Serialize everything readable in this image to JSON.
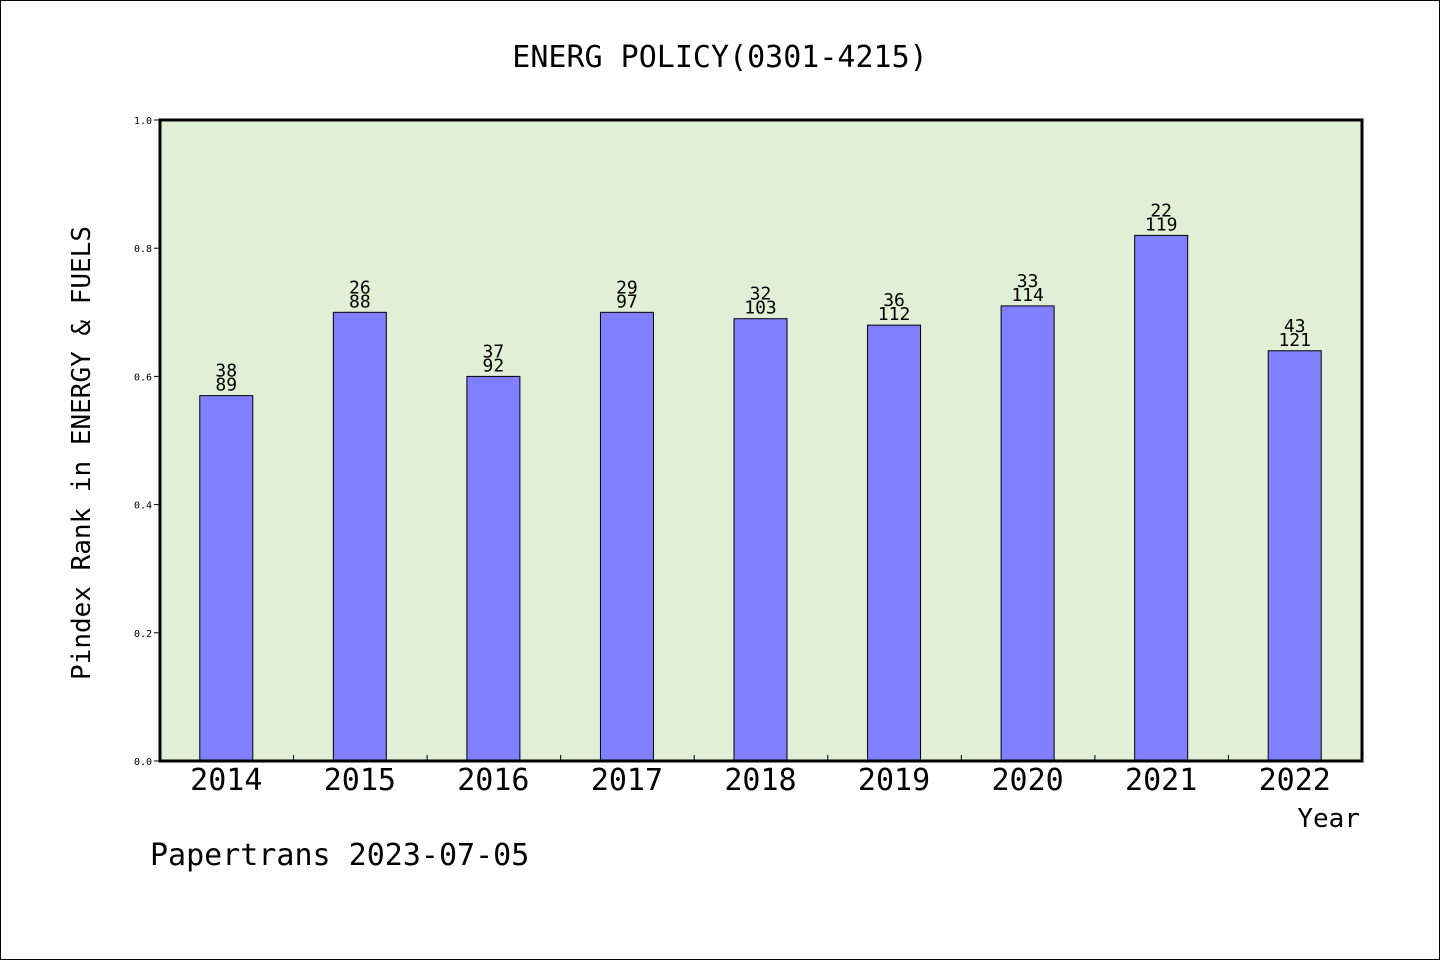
{
  "chart_data": {
    "type": "bar",
    "title": "ENERG POLICY(0301-4215)",
    "xlabel": "Year",
    "ylabel": "Pindex Rank in ENERGY & FUELS",
    "ylim": [
      0,
      1.0
    ],
    "yticks": [
      "0.0",
      "0.2",
      "0.4",
      "0.6",
      "0.8",
      "1.0"
    ],
    "categories": [
      "2014",
      "2015",
      "2016",
      "2017",
      "2018",
      "2019",
      "2020",
      "2021",
      "2022"
    ],
    "values": [
      0.57,
      0.7,
      0.6,
      0.7,
      0.69,
      0.68,
      0.71,
      0.82,
      0.64
    ],
    "labels_top": [
      "38",
      "26",
      "37",
      "29",
      "32",
      "36",
      "33",
      "22",
      "43"
    ],
    "labels_bottom": [
      "89",
      "88",
      "92",
      "97",
      "103",
      "112",
      "114",
      "119",
      "121"
    ],
    "grid": false,
    "colors": {
      "bar": "#8080ff",
      "plot_background": "#e2efd7",
      "axes": "#000000"
    }
  },
  "footer": "Papertrans 2023-07-05"
}
